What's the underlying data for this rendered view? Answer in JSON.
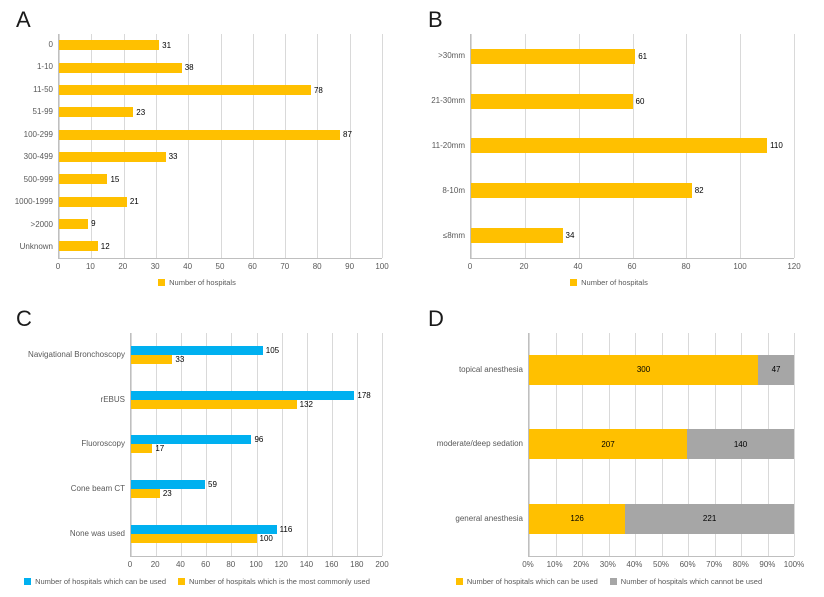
{
  "figure_background": "#ffffff",
  "colors": {
    "yellow": "#FFC000",
    "blue": "#00B0F0",
    "gray": "#A6A6A6",
    "grid": "#D9D9D9",
    "axis_line": "#BFBFBF",
    "axis_text": "#595959",
    "value_text": "#000000"
  },
  "chart_data": [
    {
      "panel_label": "A",
      "type": "bar",
      "orientation": "horizontal",
      "categories": [
        "0",
        "1-10",
        "11-50",
        "51-99",
        "100-299",
        "300-499",
        "500-999",
        "1000-1999",
        ">2000",
        "Unknown"
      ],
      "series": [
        {
          "name": "Number of hospitals",
          "color": "yellow",
          "values": [
            31,
            38,
            78,
            23,
            87,
            33,
            15,
            21,
            9,
            12
          ]
        }
      ],
      "xlim": [
        0,
        100
      ],
      "xtick_labels": [
        "0",
        "10",
        "20",
        "30",
        "40",
        "50",
        "60",
        "70",
        "80",
        "90",
        "100"
      ],
      "grid": true,
      "legend_position": "bottom"
    },
    {
      "panel_label": "B",
      "type": "bar",
      "orientation": "horizontal",
      "categories": [
        ">30mm",
        "21-30mm",
        "11-20mm",
        "8-10m",
        "≤8mm"
      ],
      "series": [
        {
          "name": "Number of hospitals",
          "color": "yellow",
          "values": [
            61,
            60,
            110,
            82,
            34
          ]
        }
      ],
      "xlim": [
        0,
        120
      ],
      "xtick_labels": [
        "0",
        "20",
        "40",
        "60",
        "80",
        "100",
        "120"
      ],
      "grid": true,
      "legend_position": "bottom"
    },
    {
      "panel_label": "C",
      "type": "grouped-bar",
      "orientation": "horizontal",
      "categories": [
        "Navigational Bronchoscopy",
        "rEBUS",
        "Fluoroscopy",
        "Cone beam CT",
        "None was used"
      ],
      "series": [
        {
          "name": "Number of hospitals which can be used",
          "color": "blue",
          "values": [
            105,
            178,
            96,
            59,
            116
          ]
        },
        {
          "name": "Number of hospitals which is the most commonly used",
          "color": "yellow",
          "values": [
            33,
            132,
            17,
            23,
            100
          ]
        }
      ],
      "xlim": [
        0,
        200
      ],
      "xtick_labels": [
        "0",
        "20",
        "40",
        "60",
        "80",
        "100",
        "120",
        "140",
        "160",
        "180",
        "200"
      ],
      "grid": true,
      "legend_position": "bottom"
    },
    {
      "panel_label": "D",
      "type": "stacked-bar-100",
      "orientation": "horizontal",
      "categories": [
        "topical anesthesia",
        "moderate/deep sedation",
        "general anesthesia"
      ],
      "series": [
        {
          "name": "Number of hospitals which can be used",
          "color": "yellow",
          "values": [
            300,
            207,
            126
          ]
        },
        {
          "name": "Number of hospitals which cannot be used",
          "color": "gray",
          "values": [
            47,
            140,
            221
          ]
        }
      ],
      "xlim": [
        0,
        100
      ],
      "xtick_labels": [
        "0%",
        "10%",
        "20%",
        "30%",
        "40%",
        "50%",
        "60%",
        "70%",
        "80%",
        "90%",
        "100%"
      ],
      "grid": true,
      "legend_position": "bottom"
    }
  ]
}
